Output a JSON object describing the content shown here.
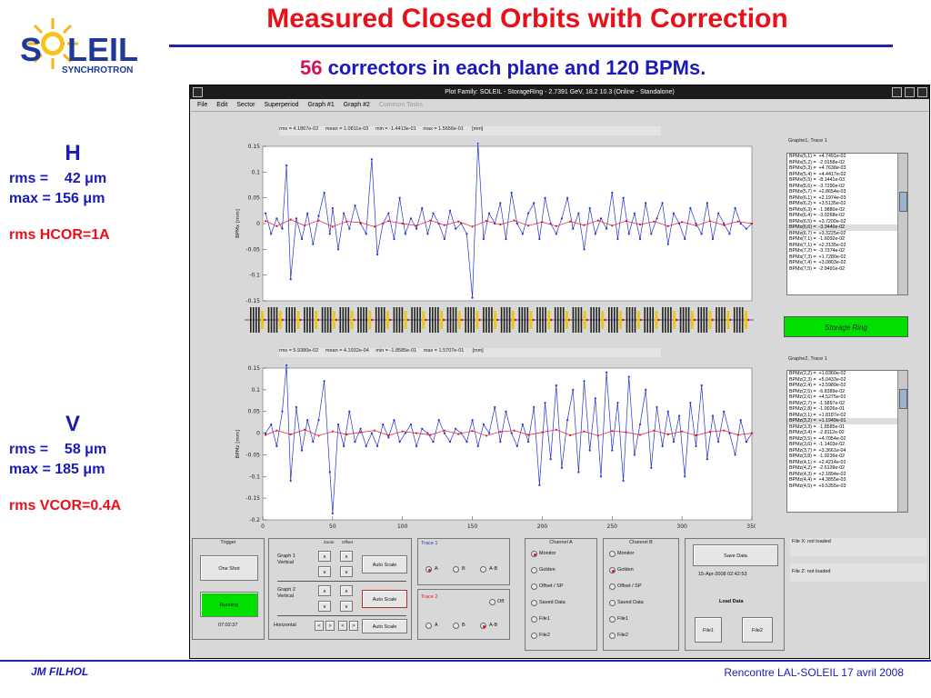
{
  "slide": {
    "title": "Measured Closed Orbits with Correction",
    "subtitle_highlight": "56",
    "subtitle_rest": " correctors in each plane and 120 BPMs.",
    "logo": {
      "text_so": "S",
      "text_leil": "LEIL",
      "sub": "SYNCHROTRON",
      "o": "O"
    },
    "h_block": {
      "label": "H",
      "rms": "rms =    42 μm",
      "max": "max = 156 μm",
      "cor": "rms HCOR=1A"
    },
    "v_block": {
      "label": "V",
      "rms": "rms =    58 μm",
      "max": "max = 185 μm",
      "cor": "rms VCOR=0.4A"
    },
    "footer_left": "JM FILHOL",
    "footer_right": "Rencontre LAL-SOLEIL 17 avril 2008"
  },
  "window": {
    "title": "Plot Family: SOLEIL - StorageRing - 2.7391 GeV, 18.2 10.3  (Online - Standalone)",
    "menu": [
      "File",
      "Edit",
      "Sector",
      "Superperiod",
      "Graph #1",
      "Graph #2"
    ],
    "menu_disabled": "Common Tasks",
    "graph1": {
      "stats": "rms = 4.1867e-02     mean = 1.0811e-03     min = -1.4413e-01     max = 1.5656e-01      [mm]",
      "ylabel": "BPMx [mm]",
      "list_title": "Graphe1, Trace 1",
      "list": [
        "BPMx(5,1) =  +4.7491e-02",
        "BPMx(5,2) =  -2.0158e-02",
        "BPMx(5,3) =  +4.7638e-03",
        "BPMx(5,4) =  +4.4417e-02",
        "BPMx(5,5) =  -8.1441e-03",
        "BPMx(5,6) =  -3.7290e-02",
        "BPMx(5,7) =  +2.8654e-03",
        "BPMx(6,1) =  +2.1974e-03",
        "BPMx(6,2) =  +3.5135e-02",
        "BPMx(6,3) =  -1.9880e-02",
        "BPMx(6,4) =  -3.0268e-02",
        "BPMx(6,5) =  +3.7200e-02",
        "BPMx(6,6) =  -3.3440e-02",
        "BPMx(6,7) =  +3.3225e-02",
        "BPMx(7,1) =  -1.6092e-02",
        "BPMx(7,1) =  +2.3135e-02",
        "BPMx(7,2) =  -3.7374e-02",
        "BPMx(7,3) =  +1.7280e-02",
        "BPMx(7,4) =  +3.0803e-02",
        "BPMx(7,5) =  -2.9491e-02"
      ],
      "selected_index": 12
    },
    "graph2": {
      "stats": "rms = 5.9380e-02     mean = 4.1932e-04     min = -1.8585e-01     max = 1.5707e-01      [mm]",
      "ylabel": "BPMz [mm]",
      "list_title": "Graphe2, Trace 1",
      "list": [
        "BPMz(2,2) =  +1.0360e-02",
        "BPMz(2,3) =  +5.0433e-02",
        "BPMz(2,4) =  +3.5989e-02",
        "BPMz(2,5) =  -6.8389e-02",
        "BPMz(2,6) =  +4.5275e-02",
        "BPMz(2,7) =  -1.5897e-02",
        "BPMz(2,8) =  -1.0026e-01",
        "BPMz(3,1) =  +1.8187e-02",
        "BPMz(3,2) =  +1.1949e-01",
        "BPMz(3,3) =  -1.8585e-01",
        "BPMz(3,4) =  -2.8112e-02",
        "BPMz(3,5) =  +4.7054e-02",
        "BPMz(3,6) =  -1.1403e-02",
        "BPMz(3,7) =  +3.3661e-04",
        "BPMz(3,8) =  -1.9236e-02",
        "BPMz(4,1) =  +2.4214e-02",
        "BPMz(4,2) =  -2.6139e-02",
        "BPMz(4,3) =  +2.1894e-02",
        "BPMz(4,4) =  +4.3855e-03",
        "BPMz(4,5) =  +9.5355e-03"
      ],
      "selected_index": 8
    },
    "storage_ring": "Storage Ring",
    "trigger": {
      "title": "Trigger",
      "one_shot": "One Shot",
      "running": "Running",
      "time": "07:02:37"
    },
    "zoom": {
      "zoom": "Zoom",
      "offset": "Offset",
      "graph1": "Graph 1\nVertical",
      "graph2": "Graph 2\nVertical",
      "horizontal": "Horizontal",
      "auto": "Auto Scale",
      "up": "∧",
      "down": "∨",
      "left": "<",
      "right": ">"
    },
    "trace1": {
      "title": "Trace 1",
      "a": "A",
      "b": "B",
      "ab": "A-B"
    },
    "trace2": {
      "title": "Trace 2",
      "off": "Off",
      "a": "A",
      "b": "B",
      "ab": "A-B"
    },
    "channel_a": {
      "title": "Channel A",
      "items": [
        "Monitor",
        "Golden",
        "Offset / SP",
        "Saved Data",
        "File1",
        "File2"
      ],
      "selected": 0
    },
    "channel_b": {
      "title": "Channel B",
      "items": [
        "Monitor",
        "Golden",
        "Offset / SP",
        "Saved Data",
        "File1",
        "File2"
      ],
      "selected": 1
    },
    "save": {
      "save": "Save Data",
      "date": "15-Apr-2008 02:42:53",
      "load": "Load Data",
      "file1": "File1",
      "file2": "File2"
    },
    "files": {
      "x": "File X: not loaded",
      "z": "File Z: not loaded"
    }
  },
  "chart_data": [
    {
      "type": "line",
      "xlim": [
        0,
        350
      ],
      "ylim": [
        -0.15,
        0.15
      ],
      "yticks": [
        0.15,
        0.1,
        0.05,
        0,
        -0.05,
        -0.1,
        -0.15
      ],
      "series": [
        {
          "color": "#2233cc",
          "x": [
            2,
            6,
            10,
            14,
            17,
            20,
            24,
            28,
            32,
            36,
            40,
            44,
            48,
            50,
            54,
            58,
            62,
            66,
            70,
            74,
            78,
            82,
            86,
            90,
            94,
            98,
            102,
            106,
            110,
            114,
            118,
            122,
            126,
            130,
            134,
            138,
            142,
            146,
            150,
            154,
            158,
            162,
            166,
            170,
            174,
            178,
            182,
            186,
            190,
            194,
            198,
            202,
            206,
            210,
            214,
            218,
            222,
            226,
            230,
            234,
            238,
            242,
            246,
            250,
            254,
            258,
            262,
            266,
            270,
            274,
            278,
            282,
            286,
            290,
            294,
            298,
            302,
            306,
            310,
            314,
            318,
            322,
            326,
            330,
            334,
            338,
            342,
            346,
            350
          ],
          "y": [
            0.02,
            -0.02,
            0.01,
            -0.01,
            0.113,
            -0.108,
            0.01,
            -0.03,
            0.02,
            -0.04,
            0.015,
            0.06,
            -0.02,
            0.03,
            -0.05,
            0.02,
            -0.01,
            0.035,
            0.0,
            -0.02,
            0.125,
            -0.06,
            0.0,
            0.02,
            -0.03,
            0.05,
            -0.02,
            0.01,
            -0.01,
            0.03,
            -0.02,
            0.02,
            0.0,
            -0.03,
            0.025,
            -0.01,
            0.0,
            -0.02,
            -0.144,
            0.157,
            -0.03,
            0.02,
            0.0,
            0.04,
            -0.03,
            0.06,
            0.0,
            -0.02,
            0.02,
            0.04,
            -0.03,
            0.05,
            0.0,
            -0.02,
            0.01,
            0.05,
            -0.01,
            0.02,
            -0.05,
            0.03,
            -0.02,
            0.01,
            -0.01,
            0.06,
            -0.03,
            0.05,
            -0.02,
            0.02,
            -0.03,
            0.04,
            -0.02,
            0.01,
            0.04,
            -0.04,
            0.02,
            0.0,
            -0.03,
            0.03,
            0.0,
            -0.02,
            0.04,
            -0.03,
            0.02,
            0.0,
            -0.02,
            0.03,
            0.0,
            -0.01,
            0.0
          ]
        },
        {
          "color": "#e8101a",
          "x": [
            2,
            10,
            20,
            30,
            40,
            50,
            60,
            70,
            80,
            90,
            100,
            110,
            120,
            130,
            140,
            150,
            160,
            170,
            180,
            190,
            200,
            210,
            220,
            230,
            240,
            250,
            260,
            270,
            280,
            290,
            300,
            310,
            320,
            330,
            340,
            350
          ],
          "y": [
            0.005,
            -0.005,
            0.008,
            -0.004,
            0.006,
            -0.006,
            0.004,
            0.002,
            -0.006,
            0.005,
            0.0,
            -0.004,
            0.006,
            -0.003,
            0.004,
            -0.006,
            0.005,
            -0.002,
            0.006,
            -0.004,
            0.003,
            -0.005,
            0.004,
            -0.003,
            0.006,
            -0.004,
            0.005,
            -0.002,
            0.004,
            -0.005,
            0.003,
            -0.004,
            0.005,
            -0.003,
            0.004,
            0.0
          ]
        }
      ]
    },
    {
      "type": "line",
      "xlim": [
        0,
        350
      ],
      "ylim": [
        -0.2,
        0.15
      ],
      "xticks": [
        0,
        50,
        100,
        150,
        200,
        250,
        300,
        350
      ],
      "yticks": [
        0.15,
        0.1,
        0.05,
        0,
        -0.05,
        -0.1,
        -0.15,
        -0.2
      ],
      "series": [
        {
          "color": "#2233cc",
          "x": [
            2,
            6,
            10,
            14,
            17,
            20,
            24,
            28,
            32,
            36,
            40,
            44,
            48,
            50,
            54,
            58,
            62,
            66,
            70,
            74,
            78,
            82,
            86,
            90,
            94,
            98,
            102,
            106,
            110,
            114,
            118,
            122,
            126,
            130,
            134,
            138,
            142,
            146,
            150,
            154,
            158,
            162,
            166,
            170,
            174,
            178,
            182,
            186,
            190,
            194,
            198,
            202,
            206,
            210,
            214,
            218,
            222,
            226,
            230,
            234,
            238,
            242,
            246,
            250,
            254,
            258,
            262,
            266,
            270,
            274,
            278,
            282,
            286,
            290,
            294,
            298,
            302,
            306,
            310,
            314,
            318,
            322,
            326,
            330,
            334,
            338,
            342,
            346,
            350
          ],
          "y": [
            0.0,
            0.02,
            -0.03,
            0.05,
            0.157,
            -0.11,
            0.06,
            -0.04,
            0.03,
            -0.02,
            0.03,
            0.12,
            -0.09,
            -0.185,
            0.02,
            -0.03,
            0.05,
            -0.02,
            0.01,
            -0.03,
            0.0,
            -0.03,
            0.02,
            -0.01,
            0.03,
            -0.02,
            0.0,
            0.02,
            -0.03,
            0.01,
            0.0,
            -0.02,
            0.03,
            0.0,
            -0.02,
            0.01,
            0.0,
            -0.02,
            0.03,
            -0.03,
            0.02,
            0.0,
            0.06,
            -0.02,
            0.05,
            0.0,
            -0.03,
            0.02,
            -0.02,
            0.06,
            -0.12,
            0.07,
            -0.06,
            0.11,
            -0.08,
            0.03,
            0.1,
            -0.09,
            0.12,
            -0.04,
            0.08,
            -0.1,
            0.14,
            -0.04,
            0.07,
            -0.11,
            0.13,
            -0.05,
            0.02,
            0.1,
            -0.08,
            0.06,
            -0.03,
            0.05,
            -0.02,
            0.04,
            -0.1,
            0.07,
            -0.03,
            0.11,
            -0.06,
            0.04,
            -0.02,
            0.05,
            0.0,
            -0.05,
            0.03,
            -0.02,
            0.0
          ]
        },
        {
          "color": "#e8101a",
          "x": [
            2,
            10,
            20,
            30,
            40,
            50,
            60,
            70,
            80,
            90,
            100,
            110,
            120,
            130,
            140,
            150,
            160,
            170,
            180,
            190,
            200,
            210,
            220,
            230,
            240,
            250,
            260,
            270,
            280,
            290,
            300,
            310,
            320,
            330,
            340,
            350
          ],
          "y": [
            -0.004,
            0.006,
            -0.003,
            0.008,
            -0.006,
            0.004,
            -0.003,
            0.002,
            0.006,
            -0.005,
            0.004,
            0.0,
            -0.004,
            0.006,
            -0.002,
            0.005,
            -0.006,
            0.003,
            0.006,
            -0.004,
            0.002,
            0.008,
            -0.005,
            0.004,
            -0.006,
            0.005,
            0.002,
            -0.004,
            0.006,
            -0.003,
            0.004,
            -0.005,
            0.003,
            0.006,
            -0.004,
            0.0
          ]
        }
      ]
    }
  ]
}
